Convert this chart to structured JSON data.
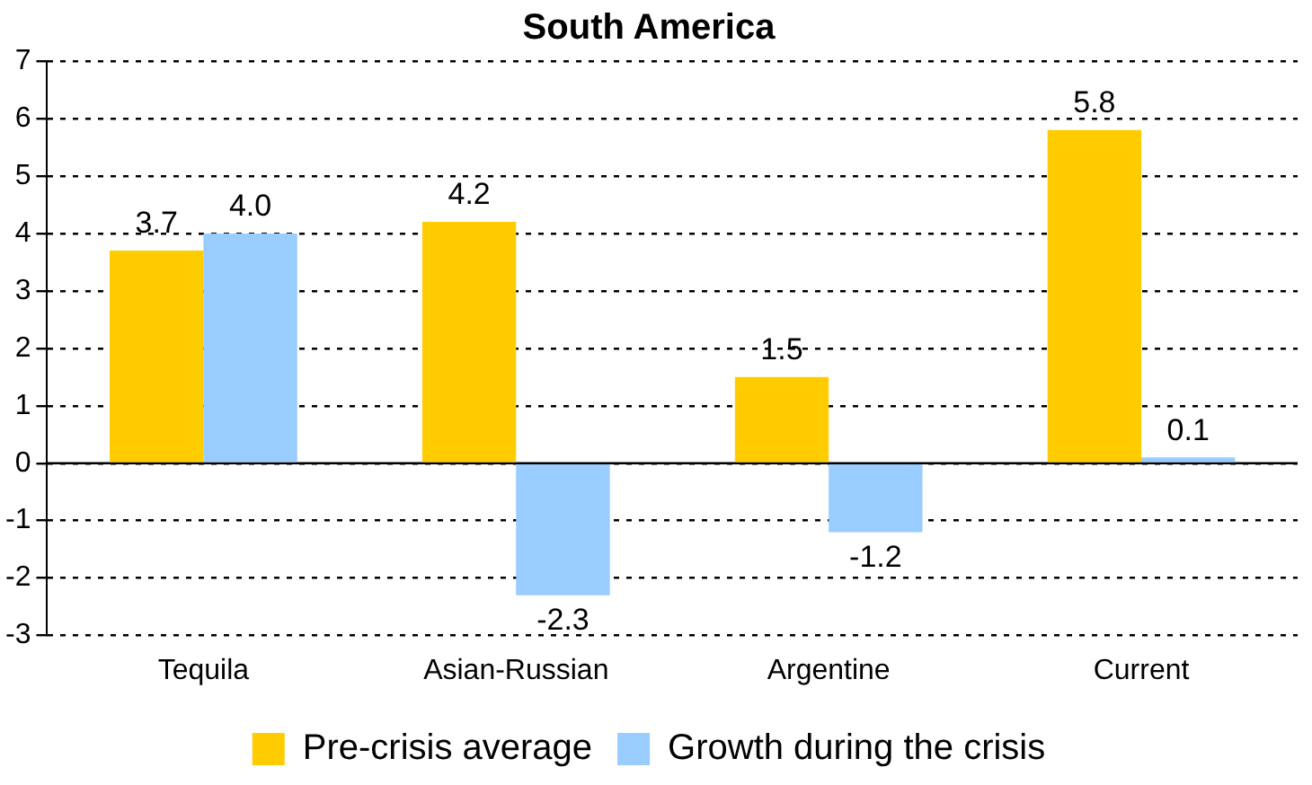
{
  "chart_data": {
    "type": "bar",
    "title": "South America",
    "categories": [
      "Tequila",
      "Asian-Russian",
      "Argentine",
      "Current"
    ],
    "series": [
      {
        "name": "Pre-crisis average",
        "color": "#ffcc00",
        "values": [
          3.7,
          4.2,
          1.5,
          5.8
        ],
        "value_labels": [
          "3.7",
          "4.2",
          "1.5",
          "5.8"
        ]
      },
      {
        "name": "Growth during the crisis",
        "color": "#99ccff",
        "values": [
          4.0,
          -2.3,
          -1.2,
          0.1
        ],
        "value_labels": [
          "4.0",
          "-2.3",
          "-1.2",
          "0.1"
        ]
      }
    ],
    "ylim": [
      -3,
      7
    ],
    "yticks": [
      -3,
      -2,
      -1,
      0,
      1,
      2,
      3,
      4,
      5,
      6,
      7
    ],
    "grid": "y",
    "legend": "bottom"
  }
}
